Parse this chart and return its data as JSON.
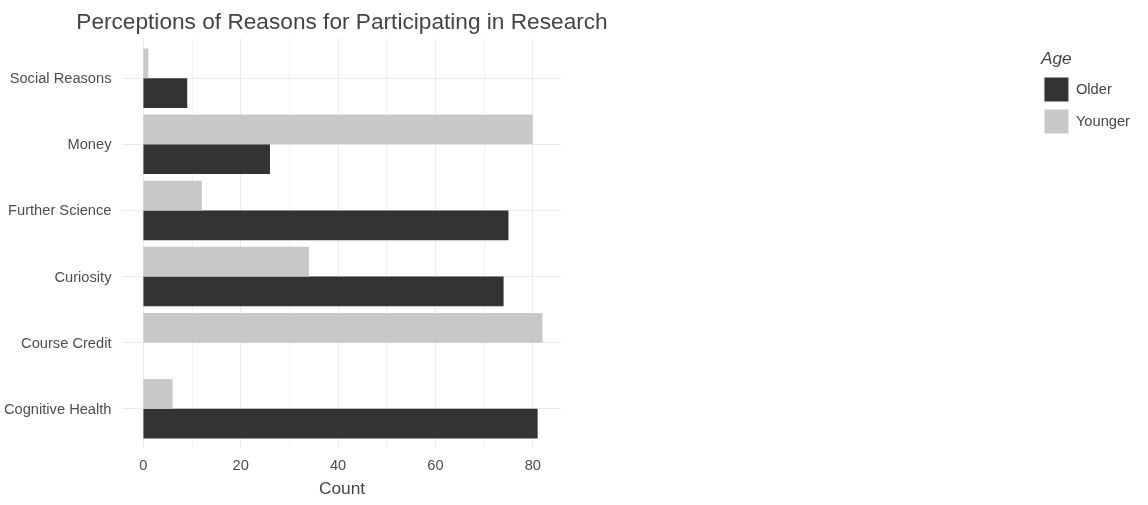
{
  "chart_data": {
    "type": "bar",
    "orientation": "horizontal",
    "title": "Perceptions of Reasons for Participating in Research",
    "xlabel": "Count",
    "legend_title": "Age",
    "categories": [
      "Social Reasons",
      "Money",
      "Further Science",
      "Curiosity",
      "Course Credit",
      "Cognitive Health"
    ],
    "series": [
      {
        "name": "Older",
        "color": "#333333",
        "values": [
          9,
          26,
          75,
          74,
          null,
          81
        ]
      },
      {
        "name": "Younger",
        "color": "#c8c8c8",
        "values": [
          1,
          80,
          12,
          34,
          82,
          6
        ]
      }
    ],
    "xlim": [
      -4.3,
      85.9
    ],
    "xticks": [
      0,
      20,
      40,
      60,
      80
    ],
    "grid": true,
    "legend": "right"
  }
}
